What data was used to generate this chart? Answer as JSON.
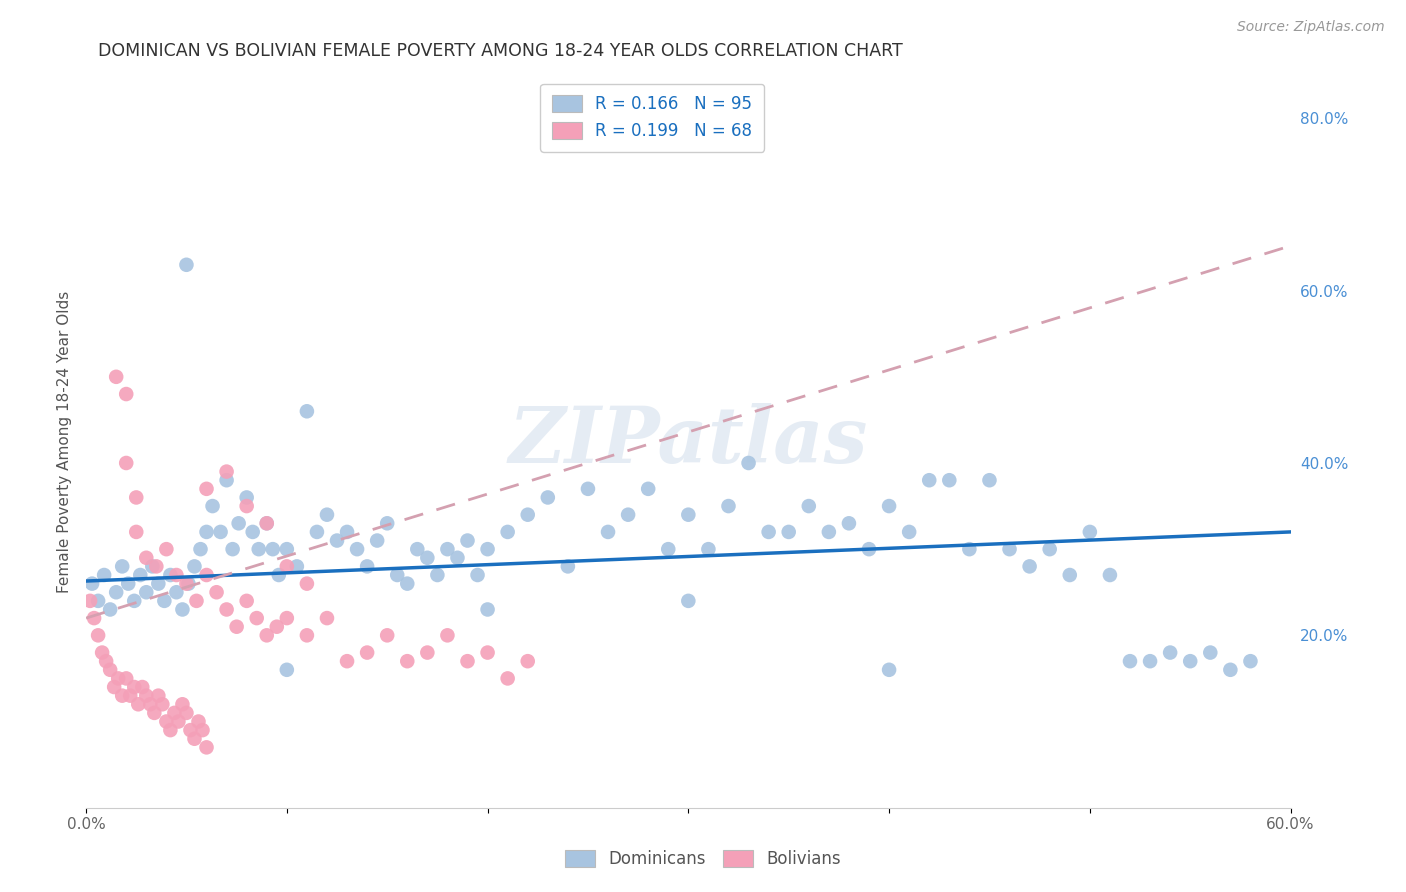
{
  "title": "DOMINICAN VS BOLIVIAN FEMALE POVERTY AMONG 18-24 YEAR OLDS CORRELATION CHART",
  "source": "Source: ZipAtlas.com",
  "ylabel": "Female Poverty Among 18-24 Year Olds",
  "xlim": [
    0.0,
    0.6
  ],
  "ylim": [
    0.0,
    0.85
  ],
  "y_ticks_right": [
    0.2,
    0.4,
    0.6,
    0.8
  ],
  "y_tick_labels_right": [
    "20.0%",
    "40.0%",
    "60.0%",
    "80.0%"
  ],
  "dominican_color": "#a8c4e0",
  "bolivian_color": "#f4a0b8",
  "dominican_line_color": "#1a6fbf",
  "bolivian_line_color": "#d4a0b0",
  "watermark": "ZIPatlas",
  "legend_r_dominican": "R = 0.166",
  "legend_n_dominican": "N = 95",
  "legend_r_bolivian": "R = 0.199",
  "legend_n_bolivian": "N = 68",
  "dominican_x": [
    0.003,
    0.006,
    0.009,
    0.012,
    0.015,
    0.018,
    0.021,
    0.024,
    0.027,
    0.03,
    0.033,
    0.036,
    0.039,
    0.042,
    0.045,
    0.048,
    0.051,
    0.054,
    0.057,
    0.06,
    0.063,
    0.067,
    0.07,
    0.073,
    0.076,
    0.08,
    0.083,
    0.086,
    0.09,
    0.093,
    0.096,
    0.1,
    0.105,
    0.11,
    0.115,
    0.12,
    0.125,
    0.13,
    0.135,
    0.14,
    0.145,
    0.15,
    0.155,
    0.16,
    0.165,
    0.17,
    0.175,
    0.18,
    0.185,
    0.19,
    0.195,
    0.2,
    0.21,
    0.22,
    0.23,
    0.24,
    0.25,
    0.26,
    0.27,
    0.28,
    0.29,
    0.3,
    0.31,
    0.32,
    0.33,
    0.34,
    0.35,
    0.36,
    0.37,
    0.38,
    0.39,
    0.4,
    0.41,
    0.42,
    0.43,
    0.44,
    0.45,
    0.46,
    0.47,
    0.48,
    0.49,
    0.5,
    0.51,
    0.52,
    0.53,
    0.54,
    0.55,
    0.56,
    0.57,
    0.58,
    0.05,
    0.1,
    0.2,
    0.3,
    0.4
  ],
  "dominican_y": [
    0.26,
    0.24,
    0.27,
    0.23,
    0.25,
    0.28,
    0.26,
    0.24,
    0.27,
    0.25,
    0.28,
    0.26,
    0.24,
    0.27,
    0.25,
    0.23,
    0.26,
    0.28,
    0.3,
    0.32,
    0.35,
    0.32,
    0.38,
    0.3,
    0.33,
    0.36,
    0.32,
    0.3,
    0.33,
    0.3,
    0.27,
    0.3,
    0.28,
    0.46,
    0.32,
    0.34,
    0.31,
    0.32,
    0.3,
    0.28,
    0.31,
    0.33,
    0.27,
    0.26,
    0.3,
    0.29,
    0.27,
    0.3,
    0.29,
    0.31,
    0.27,
    0.3,
    0.32,
    0.34,
    0.36,
    0.28,
    0.37,
    0.32,
    0.34,
    0.37,
    0.3,
    0.34,
    0.3,
    0.35,
    0.4,
    0.32,
    0.32,
    0.35,
    0.32,
    0.33,
    0.3,
    0.35,
    0.32,
    0.38,
    0.38,
    0.3,
    0.38,
    0.3,
    0.28,
    0.3,
    0.27,
    0.32,
    0.27,
    0.17,
    0.17,
    0.18,
    0.17,
    0.18,
    0.16,
    0.17,
    0.63,
    0.16,
    0.23,
    0.24,
    0.16
  ],
  "bolivian_x": [
    0.002,
    0.004,
    0.006,
    0.008,
    0.01,
    0.012,
    0.014,
    0.016,
    0.018,
    0.02,
    0.022,
    0.024,
    0.026,
    0.028,
    0.03,
    0.032,
    0.034,
    0.036,
    0.038,
    0.04,
    0.042,
    0.044,
    0.046,
    0.048,
    0.05,
    0.052,
    0.054,
    0.056,
    0.058,
    0.06,
    0.015,
    0.02,
    0.025,
    0.03,
    0.035,
    0.04,
    0.045,
    0.05,
    0.055,
    0.06,
    0.065,
    0.07,
    0.075,
    0.08,
    0.085,
    0.09,
    0.095,
    0.1,
    0.11,
    0.12,
    0.13,
    0.14,
    0.15,
    0.16,
    0.17,
    0.18,
    0.19,
    0.2,
    0.21,
    0.22,
    0.06,
    0.07,
    0.08,
    0.09,
    0.1,
    0.11,
    0.02,
    0.025
  ],
  "bolivian_y": [
    0.24,
    0.22,
    0.2,
    0.18,
    0.17,
    0.16,
    0.14,
    0.15,
    0.13,
    0.15,
    0.13,
    0.14,
    0.12,
    0.14,
    0.13,
    0.12,
    0.11,
    0.13,
    0.12,
    0.1,
    0.09,
    0.11,
    0.1,
    0.12,
    0.11,
    0.09,
    0.08,
    0.1,
    0.09,
    0.07,
    0.5,
    0.48,
    0.32,
    0.29,
    0.28,
    0.3,
    0.27,
    0.26,
    0.24,
    0.27,
    0.25,
    0.23,
    0.21,
    0.24,
    0.22,
    0.2,
    0.21,
    0.22,
    0.2,
    0.22,
    0.17,
    0.18,
    0.2,
    0.17,
    0.18,
    0.2,
    0.17,
    0.18,
    0.15,
    0.17,
    0.37,
    0.39,
    0.35,
    0.33,
    0.28,
    0.26,
    0.4,
    0.36
  ]
}
